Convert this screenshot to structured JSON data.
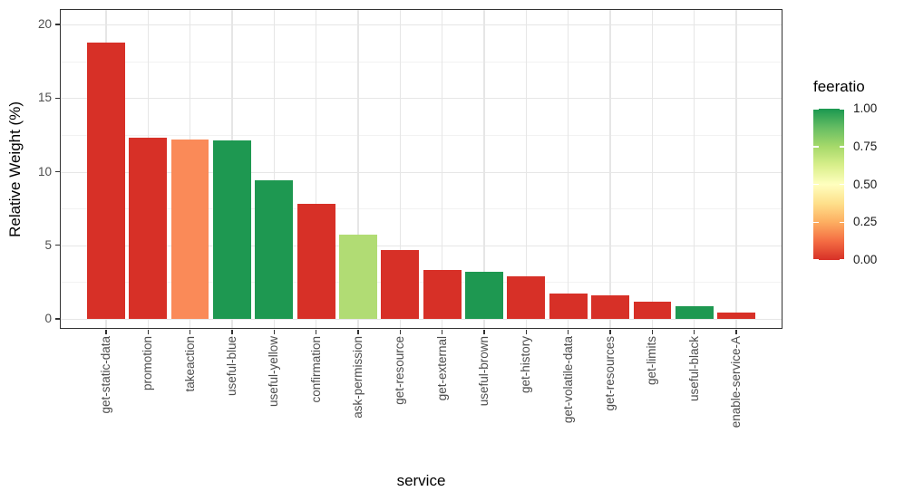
{
  "chart_data": {
    "type": "bar",
    "title": "",
    "xlabel": "service",
    "ylabel": "Relative Weight (%)",
    "ylim": [
      0,
      20
    ],
    "grid": true,
    "categories": [
      "get-static-data",
      "promotion",
      "takeaction",
      "useful-blue",
      "useful-yellow",
      "confirmation",
      "ask-permission",
      "get-resource",
      "get-external",
      "useful-brown",
      "get-history",
      "get-volatile-data",
      "get-resources",
      "get-limits",
      "useful-black",
      "enable-service-A"
    ],
    "values": [
      18.8,
      12.3,
      12.2,
      12.1,
      9.4,
      7.8,
      5.7,
      4.7,
      3.3,
      3.2,
      2.9,
      1.7,
      1.6,
      1.2,
      0.85,
      0.45
    ],
    "bar_colors": [
      "#d73027",
      "#d73027",
      "#fa8a58",
      "#1e9851",
      "#1e9851",
      "#d73027",
      "#b1dc74",
      "#d73027",
      "#d73027",
      "#1e9851",
      "#d73027",
      "#d73027",
      "#d73027",
      "#d73027",
      "#1e9851",
      "#d73027"
    ],
    "y_ticks": [
      {
        "label": "0",
        "value": 0
      },
      {
        "label": "5",
        "value": 5
      },
      {
        "label": "10",
        "value": 10
      },
      {
        "label": "15",
        "value": 15
      },
      {
        "label": "20",
        "value": 20
      }
    ],
    "y_minor_ticks": [
      2.5,
      7.5,
      12.5,
      17.5
    ],
    "colors": {
      "red": "#d73027",
      "orange": "#fa8a58",
      "green": "#1e9851",
      "light_green": "#b1dc74",
      "grid_major": "#e6e6e6",
      "grid_minor": "#f2f2f2",
      "panel_border": "#333333",
      "tick_text": "#4d4d4d"
    },
    "legend": {
      "title": "feeratio",
      "position": "right",
      "type": "continuous-gradient",
      "ticks": [
        {
          "label": "1.00",
          "value": 1.0
        },
        {
          "label": "0.75",
          "value": 0.75
        },
        {
          "label": "0.50",
          "value": 0.5
        },
        {
          "label": "0.25",
          "value": 0.25
        },
        {
          "label": "0.00",
          "value": 0.0
        }
      ],
      "gradient_stops": [
        "#d73027",
        "#f46d43",
        "#fdae61",
        "#fee08b",
        "#ffffbf",
        "#d9ef8b",
        "#a6d96a",
        "#66bd63",
        "#1a9850"
      ]
    }
  }
}
